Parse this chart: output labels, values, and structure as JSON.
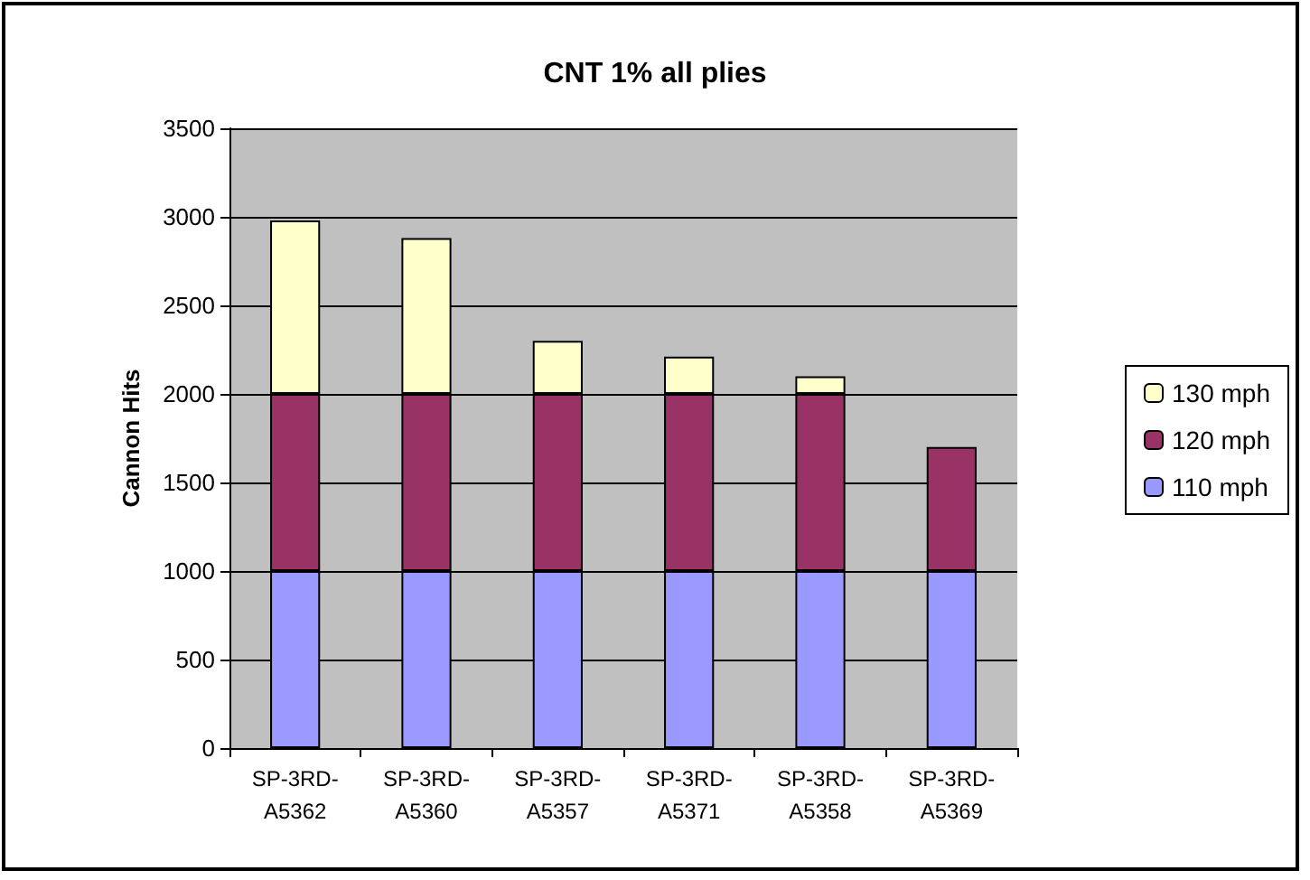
{
  "chart_data": {
    "type": "bar",
    "title": "CNT 1% all plies",
    "ylabel": "Cannon Hits",
    "categories": [
      "SP-3RD-A5362",
      "SP-3RD-A5360",
      "SP-3RD-A5357",
      "SP-3RD-A5371",
      "SP-3RD-A5358",
      "SP-3RD-A5369"
    ],
    "stacked": true,
    "series": [
      {
        "name": "110 mph",
        "color": "#9999ff",
        "values": [
          1000,
          1000,
          1000,
          1000,
          1000,
          1000
        ]
      },
      {
        "name": "120 mph",
        "color": "#993366",
        "values": [
          1000,
          1000,
          1000,
          1000,
          1000,
          700
        ]
      },
      {
        "name": "130 mph",
        "color": "#ffffcc",
        "values": [
          980,
          880,
          300,
          210,
          100,
          null
        ]
      }
    ],
    "ylim": [
      0,
      3500
    ],
    "yticks": [
      0,
      500,
      1000,
      1500,
      2000,
      2500,
      3000,
      3500
    ],
    "grid": "y",
    "legend": "right"
  }
}
